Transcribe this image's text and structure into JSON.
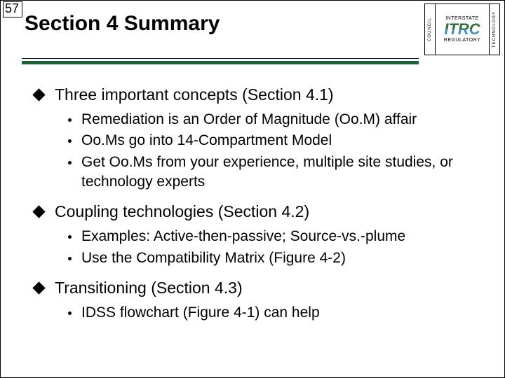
{
  "page_number": "57",
  "title": "Section 4 Summary",
  "logo": {
    "left_text": "COUNCIL",
    "top_text": "INTERSTATE",
    "center_text": "ITRC",
    "bottom_text": "REGULATORY",
    "right_text": "TECHNOLOGY"
  },
  "colors": {
    "rule_green": "#1f5f3a",
    "text": "#000000",
    "background": "#ffffff"
  },
  "bullets": [
    {
      "text": "Three important concepts (Section 4.1)",
      "sub": [
        "Remediation is an Order of Magnitude (Oo.M) affair",
        "Oo.Ms go into 14-Compartment Model",
        "Get Oo.Ms from your experience, multiple site studies, or technology experts"
      ]
    },
    {
      "text": "Coupling technologies (Section 4.2)",
      "sub": [
        "Examples: Active-then-passive; Source-vs.-plume",
        "Use the Compatibility Matrix (Figure 4-2)"
      ]
    },
    {
      "text": "Transitioning (Section 4.3)",
      "sub": [
        "IDSS flowchart (Figure 4-1) can help"
      ]
    }
  ]
}
